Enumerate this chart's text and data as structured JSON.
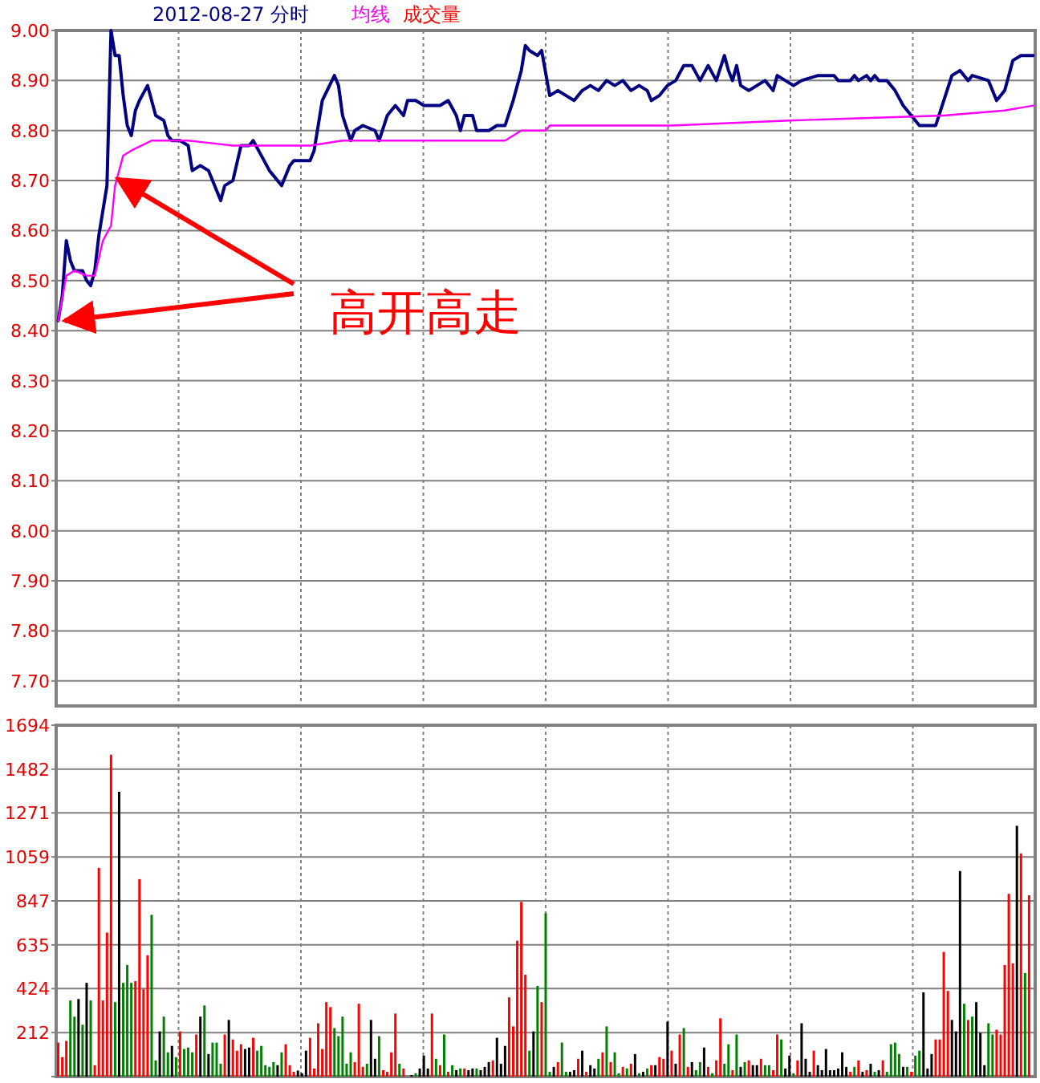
{
  "chart_data": [
    {
      "type": "line",
      "title": "2012-08-27 分时",
      "grid": true,
      "tick_labels": "y",
      "categories": [
        null,
        null,
        null,
        null,
        null,
        null,
        null,
        null,
        null,
        null,
        null,
        null,
        null,
        null,
        null,
        null,
        null,
        null,
        null,
        null,
        null,
        null,
        null,
        null,
        null,
        null,
        null,
        null,
        null,
        null,
        null,
        null,
        null,
        null,
        null,
        null,
        null,
        null,
        null,
        null,
        null,
        null,
        null,
        null,
        null,
        null,
        null,
        null,
        null,
        null,
        null,
        null,
        null,
        null,
        null,
        null,
        null,
        null,
        null,
        null,
        null,
        null,
        null,
        null,
        null,
        null,
        null,
        null,
        null,
        null,
        null,
        null,
        null,
        null,
        null,
        null,
        null,
        null,
        null,
        null,
        null,
        null,
        null,
        null,
        null,
        null,
        null,
        null,
        null,
        null,
        null,
        null,
        null,
        null,
        null,
        null,
        null,
        null,
        null,
        null,
        null,
        null,
        null,
        null,
        null,
        null,
        null,
        null,
        null,
        null,
        null,
        null,
        null,
        null,
        null,
        null,
        null,
        null,
        null,
        null,
        null,
        null,
        null,
        null,
        null,
        null,
        null,
        null,
        null,
        null,
        null,
        null,
        null,
        null,
        null,
        null,
        null,
        null,
        null,
        null,
        null,
        null,
        null,
        null,
        null,
        null,
        null,
        null,
        null,
        null,
        null,
        null,
        null,
        null,
        null,
        null,
        null,
        null,
        null,
        null,
        null,
        null,
        null,
        null,
        null,
        null,
        null,
        null,
        null,
        null,
        null,
        null,
        null,
        null,
        null,
        null,
        null,
        null,
        null,
        null,
        null,
        null,
        null,
        null,
        null,
        null,
        null,
        null,
        null,
        null,
        null,
        null,
        null,
        null,
        null,
        null,
        null,
        null,
        null,
        null,
        null,
        null,
        null,
        null,
        null,
        null,
        null,
        null,
        null,
        null,
        null,
        null,
        null,
        null,
        null,
        null,
        null,
        null,
        null,
        null,
        null,
        null,
        null,
        null,
        null,
        null,
        null,
        null,
        null,
        null,
        null,
        null,
        null,
        null,
        null,
        null,
        null,
        null,
        null,
        null,
        null
      ],
      "ylim": [
        7.65,
        9.0
      ],
      "yticks": [
        {
          "value": 7.7,
          "label": "7.70"
        },
        {
          "value": 7.8,
          "label": "7.80"
        },
        {
          "value": 7.9,
          "label": "7.90"
        },
        {
          "value": 8.0,
          "label": "8.00"
        },
        {
          "value": 8.1,
          "label": "8.10"
        },
        {
          "value": 8.2,
          "label": "8.20"
        },
        {
          "value": 8.3,
          "label": "8.30"
        },
        {
          "value": 8.4,
          "label": "8.40"
        },
        {
          "value": 8.5,
          "label": "8.50"
        },
        {
          "value": 8.6,
          "label": "8.60"
        },
        {
          "value": 8.7,
          "label": "8.70"
        },
        {
          "value": 8.8,
          "label": "8.80"
        },
        {
          "value": 8.9,
          "label": "8.90"
        },
        {
          "value": 9.0,
          "label": "9.00"
        }
      ],
      "annotations": [
        "高开高走"
      ],
      "series": [
        {
          "color": "#000080",
          "values": [
            8.42,
            8.47,
            8.58,
            8.54,
            8.52,
            null,
            8.52,
            8.5,
            8.49,
            8.52,
            8.59,
            null,
            8.69,
            9.0,
            8.95,
            8.95,
            8.87,
            8.81,
            8.79,
            8.84,
            8.86,
            null,
            8.89,
            8.86,
            8.83,
            null,
            8.82,
            8.79,
            8.78,
            null,
            8.78,
            null,
            8.77,
            8.72,
            null,
            8.73,
            null,
            8.72,
            8.7,
            8.68,
            8.66,
            8.69,
            null,
            8.7,
            null,
            8.77,
            null,
            8.77,
            8.78,
            null,
            8.75,
            null,
            8.72,
            8.71,
            null,
            8.69,
            null,
            8.73,
            8.74,
            null,
            null,
            null,
            8.74,
            8.76,
            null,
            8.86,
            null,
            null,
            8.91,
            8.89,
            8.83,
            null,
            8.78,
            8.8,
            null,
            8.81,
            null,
            null,
            8.8,
            8.78,
            null,
            8.83,
            null,
            8.85,
            null,
            8.83,
            8.86,
            null,
            8.86,
            null,
            8.85,
            null,
            null,
            null,
            8.85,
            null,
            8.86,
            null,
            8.83,
            8.8,
            8.83,
            null,
            8.83,
            8.8,
            null,
            null,
            8.8,
            null,
            8.81,
            null,
            8.81,
            null,
            8.86,
            null,
            8.92,
            8.97,
            8.96,
            null,
            8.95,
            8.96,
            null,
            8.87,
            null,
            8.88,
            null,
            8.87,
            null,
            8.86,
            null,
            8.88,
            null,
            8.89,
            null,
            8.88,
            null,
            8.9,
            null,
            8.89,
            null,
            8.9,
            null,
            8.88,
            null,
            8.89,
            null,
            8.88,
            8.86,
            null,
            8.87,
            null,
            8.89,
            null,
            8.9,
            null,
            8.93,
            null,
            8.93,
            null,
            8.9,
            null,
            8.93,
            null,
            8.9,
            null,
            8.95,
            8.92,
            8.9,
            8.93,
            8.89,
            null,
            8.88,
            null,
            null,
            null,
            8.9,
            null,
            8.88,
            8.91,
            null,
            8.9,
            null,
            8.89,
            null,
            8.9,
            null,
            null,
            null,
            8.91,
            null,
            null,
            null,
            8.91,
            8.9,
            null,
            null,
            8.9,
            8.91,
            8.9,
            null,
            8.91,
            8.9,
            8.91,
            8.9,
            null,
            8.9,
            null,
            8.88,
            null,
            8.85,
            null,
            8.83,
            null,
            8.81,
            null,
            null,
            null,
            8.81,
            null,
            8.86,
            null,
            8.91,
            null,
            8.92,
            null,
            8.9,
            8.91,
            null,
            null,
            null,
            8.9,
            null,
            8.86,
            null,
            8.88,
            null,
            8.94,
            null,
            8.95,
            null,
            8.95,
            8.95
          ]
        },
        {
          "name": "均线",
          "color": "#ff00ff",
          "values": [
            8.42,
            null,
            8.51,
            null,
            8.52,
            null,
            null,
            8.51,
            null,
            8.51,
            null,
            8.58,
            null,
            8.61,
            8.69,
            null,
            8.75,
            null,
            8.76,
            null,
            null,
            null,
            null,
            8.78,
            null,
            null,
            null,
            null,
            null,
            null,
            null,
            null,
            8.78,
            null,
            null,
            null,
            null,
            null,
            null,
            null,
            null,
            null,
            null,
            8.77,
            null,
            null,
            null,
            null,
            null,
            null,
            null,
            null,
            null,
            null,
            null,
            null,
            null,
            null,
            null,
            null,
            null,
            null,
            8.77,
            null,
            null,
            null,
            null,
            null,
            null,
            null,
            8.78,
            null,
            null,
            null,
            null,
            null,
            null,
            null,
            null,
            null,
            null,
            null,
            null,
            null,
            null,
            null,
            null,
            null,
            null,
            null,
            null,
            null,
            null,
            null,
            null,
            null,
            null,
            null,
            null,
            null,
            null,
            null,
            null,
            null,
            null,
            null,
            null,
            null,
            null,
            null,
            8.78,
            null,
            null,
            null,
            8.8,
            null,
            null,
            null,
            null,
            null,
            8.8,
            8.81,
            null,
            null,
            null,
            null,
            null,
            null,
            null,
            null,
            null,
            null,
            null,
            null,
            null,
            null,
            null,
            null,
            null,
            null,
            null,
            null,
            null,
            null,
            null,
            null,
            null,
            null,
            null,
            null,
            null,
            8.81,
            null,
            null,
            null,
            null,
            null,
            null,
            null,
            null,
            null,
            null,
            null,
            null,
            null,
            null,
            null,
            null,
            null,
            null,
            null,
            null,
            null,
            null,
            null,
            null,
            null,
            null,
            null,
            null,
            8.82,
            null,
            null,
            null,
            null,
            null,
            null,
            null,
            null,
            null,
            null,
            null,
            null,
            null,
            null,
            null,
            null,
            null,
            null,
            null,
            null,
            null,
            null,
            null,
            null,
            null,
            null,
            null,
            null,
            null,
            null,
            null,
            null,
            null,
            null,
            null,
            null,
            null,
            8.83,
            null,
            null,
            null,
            null,
            null,
            null,
            null,
            null,
            null,
            null,
            null,
            null,
            null,
            null,
            8.84,
            null,
            null,
            null,
            null,
            null,
            null,
            8.85
          ]
        }
      ]
    },
    {
      "type": "bar",
      "grid": true,
      "tick_labels": "y",
      "categories": [
        null,
        null,
        null,
        null,
        null,
        null,
        null,
        null,
        null,
        null,
        null,
        null,
        null,
        null,
        null,
        null,
        null,
        null,
        null,
        null,
        null,
        null,
        null,
        null,
        null,
        null,
        null,
        null,
        null,
        null,
        null,
        null,
        null,
        null,
        null,
        null,
        null,
        null,
        null,
        null,
        null,
        null,
        null,
        null,
        null,
        null,
        null,
        null,
        null,
        null,
        null,
        null,
        null,
        null,
        null,
        null,
        null,
        null,
        null,
        null,
        null,
        null,
        null,
        null,
        null,
        null,
        null,
        null,
        null,
        null,
        null,
        null,
        null,
        null,
        null,
        null,
        null,
        null,
        null,
        null,
        null,
        null,
        null,
        null,
        null,
        null,
        null,
        null,
        null,
        null,
        null,
        null,
        null,
        null,
        null,
        null,
        null,
        null,
        null,
        null,
        null,
        null,
        null,
        null,
        null,
        null,
        null,
        null,
        null,
        null,
        null,
        null,
        null,
        null,
        null,
        null,
        null,
        null,
        null,
        null,
        null,
        null,
        null,
        null,
        null,
        null,
        null,
        null,
        null,
        null,
        null,
        null,
        null,
        null,
        null,
        null,
        null,
        null,
        null,
        null,
        null,
        null,
        null,
        null,
        null,
        null,
        null,
        null,
        null,
        null,
        null,
        null,
        null,
        null,
        null,
        null,
        null,
        null,
        null,
        null,
        null,
        null,
        null,
        null,
        null,
        null,
        null,
        null,
        null,
        null,
        null,
        null,
        null,
        null,
        null,
        null,
        null,
        null,
        null,
        null,
        null,
        null,
        null,
        null,
        null,
        null,
        null,
        null,
        null,
        null,
        null,
        null,
        null,
        null,
        null,
        null,
        null,
        null,
        null,
        null,
        null,
        null,
        null,
        null,
        null,
        null,
        null,
        null,
        null,
        null,
        null,
        null,
        null,
        null,
        null,
        null,
        null,
        null,
        null,
        null,
        null,
        null,
        null,
        null,
        null,
        null,
        null,
        null,
        null,
        null,
        null,
        null,
        null,
        null,
        null,
        null,
        null,
        null,
        null,
        null,
        null
      ],
      "ylim": [
        0,
        1694
      ],
      "yticks": [
        {
          "value": 0,
          "label": null
        },
        212,
        424,
        635,
        847,
        1059,
        1271,
        1482,
        1694
      ],
      "series": [
        {
          "name": "成交量",
          "color": "#ff0000",
          "values": [
            164,
            94,
            172,
            367,
            289,
            374,
            250,
            452,
            367,
            55,
            1006,
            367,
            694,
            1552,
            359,
            1373,
            452,
            538,
            452,
            460,
            952,
            421,
            585,
            780,
            78,
            218,
            289,
            117,
            148,
            94,
            218,
            133,
            140,
            117,
            203,
            289,
            343,
            109,
            164,
            164,
            62,
            203,
            273,
            179,
            125,
            156,
            133,
            140,
            187,
            125,
            148,
            55,
            47,
            70,
            55,
            117,
            156,
            55,
            23,
            29,
            16,
            125,
            187,
            39,
            257,
            133,
            359,
            335,
            234,
            195,
            289,
            62,
            117,
            70,
            351,
            47,
            62,
            273,
            86,
            195,
            31,
            23,
            117,
            304,
            62,
            39,
            null,
            8,
            16,
            39,
            101,
            39,
            304,
            86,
            55,
            203,
            23,
            55,
            31,
            39,
            39,
            31,
            39,
            39,
            31,
            47,
            70,
            78,
            187,
            62,
            148,
            382,
            242,
            655,
            842,
            491,
            125,
            218,
            437,
            359,
            788,
            23,
            47,
            70,
            164,
            23,
            23,
            31,
            86,
            125,
            23,
            55,
            39,
            86,
            117,
            242,
            70,
            117,
            16,
            47,
            39,
            62,
            109,
            16,
            23,
            39,
            55,
            55,
            94,
            86,
            265,
            125,
            62,
            203,
            234,
            47,
            70,
            31,
            70,
            140,
            47,
            16,
            78,
            281,
            62,
            156,
            31,
            203,
            47,
            70,
            78,
            55,
            55,
            86,
            55,
            55,
            31,
            203,
            179,
            39,
            101,
            16,
            78,
            257,
            86,
            23,
            125,
            55,
            31,
            133,
            31,
            31,
            39,
            117,
            47,
            23,
            47,
            78,
            23,
            31,
            62,
            23,
            31,
            78,
            23,
            156,
            164,
            109,
            47,
            47,
            23,
            101,
            125,
            406,
            39,
            109,
            179,
            179,
            601,
            413,
            273,
            218,
            991,
            351,
            273,
            289,
            359,
            211,
            55,
            257,
            203,
            226,
            203,
            538,
            881,
            546,
            1209,
            1076,
            499,
            874,
            null
          ],
          "colors": [
            "#ff0000",
            "#ff0000",
            "#ff0000",
            "#008000",
            "#008000",
            "#000000",
            "#008000",
            "#000000",
            "#008000",
            "#ff0000",
            "#ff0000",
            "#ff0000",
            "#ff0000",
            "#ff0000",
            "#008000",
            "#000000",
            "#008000",
            "#008000",
            "#008000",
            "#ff0000",
            "#ff0000",
            "#ff0000",
            "#ff0000",
            "#008000",
            "#008000",
            "#000000",
            "#008000",
            "#008000",
            "#000000",
            "#008000",
            "#ff0000",
            "#008000",
            "#008000",
            "#008000",
            "#ff0000",
            "#000000",
            "#008000",
            "#000000",
            "#008000",
            "#008000",
            "#008000",
            "#ff0000",
            "#000000",
            "#ff0000",
            "#ff0000",
            "#ff0000",
            "#000000",
            "#000000",
            "#ff0000",
            "#008000",
            "#008000",
            "#008000",
            "#008000",
            "#008000",
            "#000000",
            "#008000",
            "#ff0000",
            "#ff0000",
            "#ff0000",
            "#000000",
            "#000000",
            "#000000",
            "#ff0000",
            "#ff0000",
            "#ff0000",
            "#ff0000",
            "#ff0000",
            "#ff0000",
            "#008000",
            "#008000",
            "#008000",
            "#008000",
            "#008000",
            "#ff0000",
            "#ff0000",
            "#ff0000",
            "#008000",
            "#000000",
            "#000000",
            "#008000",
            "#ff0000",
            "#ff0000",
            "#ff0000",
            "#ff0000",
            "#008000",
            "#ff0000",
            null,
            "#000000",
            "#008000",
            "#000000",
            "#000000",
            "#000000",
            "#ff0000",
            "#008000",
            "#ff0000",
            "#008000",
            "#ff0000",
            "#008000",
            "#000000",
            "#008000",
            "#ff0000",
            "#000000",
            "#000000",
            "#008000",
            "#000000",
            "#000000",
            "#000000",
            "#ff0000",
            "#000000",
            "#000000",
            "#000000",
            "#ff0000",
            "#ff0000",
            "#ff0000",
            "#ff0000",
            "#ff0000",
            "#008000",
            "#000000",
            "#008000",
            "#ff0000",
            "#008000",
            "#008000",
            "#000000",
            "#ff0000",
            "#008000",
            "#008000",
            "#000000",
            "#000000",
            "#ff0000",
            "#000000",
            "#ff0000",
            "#000000",
            "#000000",
            "#008000",
            "#ff0000",
            "#008000",
            "#ff0000",
            "#008000",
            "#008000",
            "#ff0000",
            "#008000",
            "#ff0000",
            "#000000",
            "#008000",
            "#000000",
            "#008000",
            "#ff0000",
            "#000000",
            "#ff0000",
            "#ff0000",
            "#000000",
            "#ff0000",
            "#000000",
            "#ff0000",
            "#008000",
            "#ff0000",
            "#000000",
            "#008000",
            "#008000",
            "#000000",
            "#ff0000",
            "#008000",
            "#ff0000",
            "#ff0000",
            "#008000",
            "#008000",
            "#ff0000",
            "#008000",
            "#000000",
            "#008000",
            "#ff0000",
            "#000000",
            "#000000",
            "#ff0000",
            "#008000",
            "#008000",
            "#ff0000",
            "#ff0000",
            "#008000",
            "#000000",
            "#000000",
            "#008000",
            "#ff0000",
            "#000000",
            "#000000",
            "#000000",
            "#ff0000",
            "#000000",
            "#000000",
            "#000000",
            "#000000",
            "#000000",
            "#000000",
            "#000000",
            "#000000",
            "#ff0000",
            "#008000",
            "#ff0000",
            "#000000",
            "#ff0000",
            "#000000",
            "#008000",
            "#000000",
            "#ff0000",
            "#008000",
            "#008000",
            "#008000",
            "#008000",
            "#000000",
            "#008000",
            "#ff0000",
            "#008000",
            "#008000",
            "#000000",
            "#000000",
            "#000000",
            "#ff0000",
            "#ff0000",
            "#ff0000",
            "#ff0000",
            "#000000",
            "#000000",
            "#000000",
            "#008000",
            "#ff0000",
            "#008000",
            "#000000",
            "#000000",
            "#000000",
            "#008000",
            "#008000",
            "#ff0000",
            "#ff0000",
            "#ff0000",
            "#ff0000",
            "#ff0000",
            "#000000",
            "#ff0000",
            "#008000",
            "#ff0000",
            null
          ]
        }
      ]
    }
  ]
}
